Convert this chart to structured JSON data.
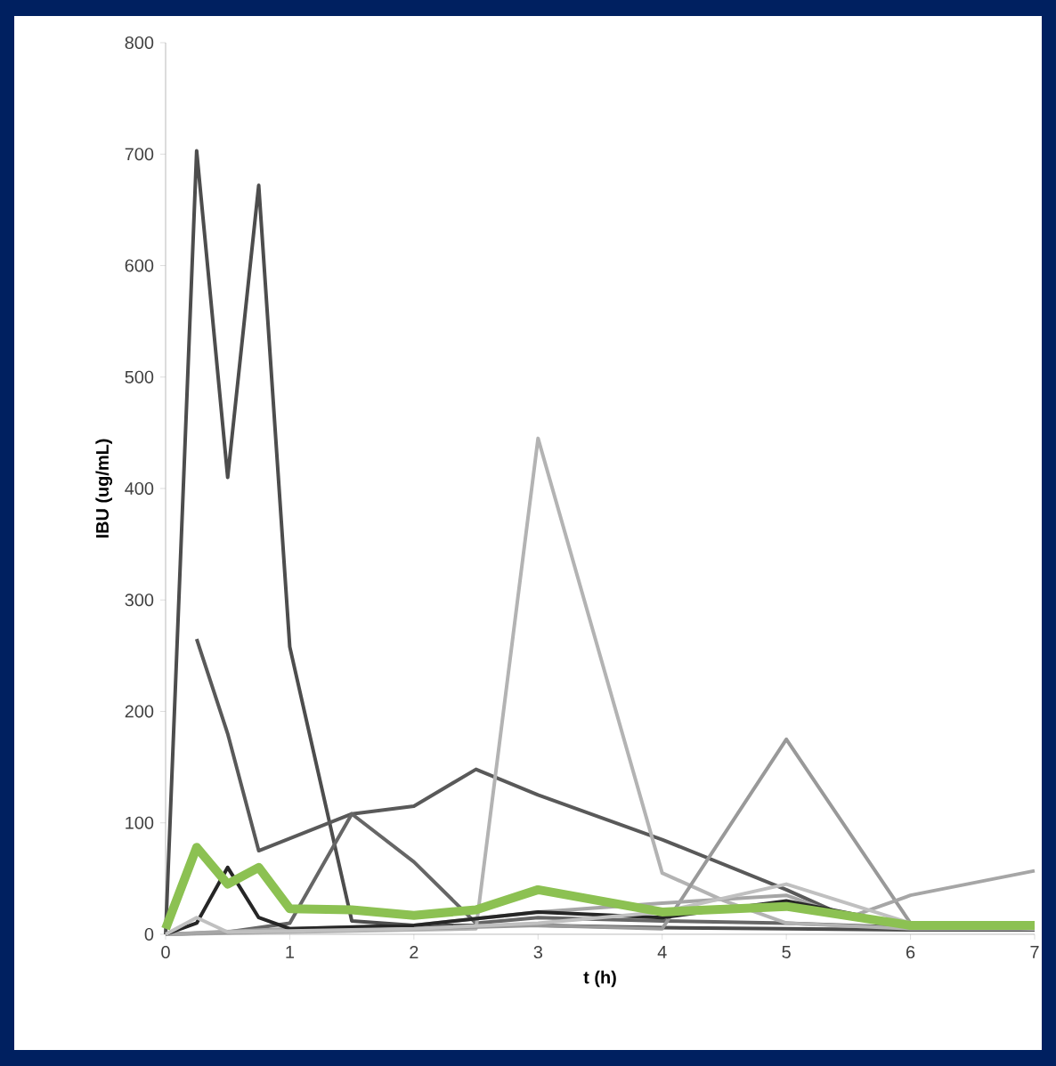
{
  "chart_data": {
    "type": "line",
    "xlabel": "t (h)",
    "ylabel": "IBU (ug/mL)",
    "xlim": [
      0,
      7
    ],
    "ylim": [
      0,
      800
    ],
    "xticks": [
      0,
      1,
      2,
      3,
      4,
      5,
      6,
      7
    ],
    "yticks": [
      0,
      100,
      200,
      300,
      400,
      500,
      600,
      700,
      800
    ],
    "grid": false,
    "marker": "none",
    "line_style": "solid",
    "series": [
      {
        "color": "#4d4d4d",
        "x": [
          0,
          0.25,
          0.5,
          0.75,
          1,
          1.5,
          2,
          3,
          4,
          5,
          6,
          7
        ],
        "values": [
          0,
          703,
          410,
          672,
          258,
          12,
          8,
          8,
          6,
          5,
          4,
          4
        ]
      },
      {
        "color": "#595959",
        "x": [
          0.25,
          0.5,
          0.75,
          1.5,
          2,
          2.5,
          3,
          4,
          5,
          5.5,
          6,
          7
        ],
        "values": [
          265,
          180,
          75,
          108,
          115,
          148,
          125,
          85,
          40,
          15,
          8,
          8
        ]
      },
      {
        "color": "#666666",
        "x": [
          0,
          0.5,
          1,
          1.5,
          2,
          2.5,
          3,
          4,
          5,
          6,
          7
        ],
        "values": [
          0,
          2,
          10,
          108,
          65,
          10,
          15,
          12,
          10,
          6,
          6
        ]
      },
      {
        "color": "#b3b3b3",
        "x": [
          0,
          1,
          2,
          2.5,
          3,
          4,
          4.5,
          5,
          6,
          7
        ],
        "values": [
          0,
          2,
          4,
          5,
          445,
          55,
          30,
          10,
          5,
          5
        ]
      },
      {
        "color": "#999999",
        "x": [
          0,
          1,
          2,
          3,
          4,
          5,
          6,
          7
        ],
        "values": [
          0,
          3,
          5,
          8,
          5,
          175,
          10,
          8
        ]
      },
      {
        "color": "#a6a6a6",
        "x": [
          0,
          1,
          2,
          3,
          4,
          5,
          5.5,
          6,
          7
        ],
        "values": [
          0,
          5,
          8,
          20,
          28,
          35,
          15,
          35,
          57
        ]
      },
      {
        "color": "#262626",
        "x": [
          0,
          0.25,
          0.5,
          0.75,
          1,
          2,
          3,
          4,
          5,
          6,
          7
        ],
        "values": [
          0,
          10,
          60,
          15,
          5,
          8,
          20,
          15,
          30,
          8,
          6
        ]
      },
      {
        "color": "#c0c0c0",
        "x": [
          0,
          0.25,
          0.5,
          1,
          2,
          3,
          4,
          5,
          6,
          7
        ],
        "values": [
          0,
          15,
          2,
          3,
          5,
          10,
          20,
          45,
          10,
          5
        ]
      },
      {
        "color": "#8cc152",
        "x": [
          0,
          0.25,
          0.5,
          0.75,
          1,
          1.5,
          2,
          2.5,
          3,
          4,
          5,
          6,
          7
        ],
        "values": [
          5,
          78,
          45,
          60,
          23,
          22,
          17,
          22,
          40,
          20,
          25,
          8,
          8
        ]
      }
    ]
  }
}
